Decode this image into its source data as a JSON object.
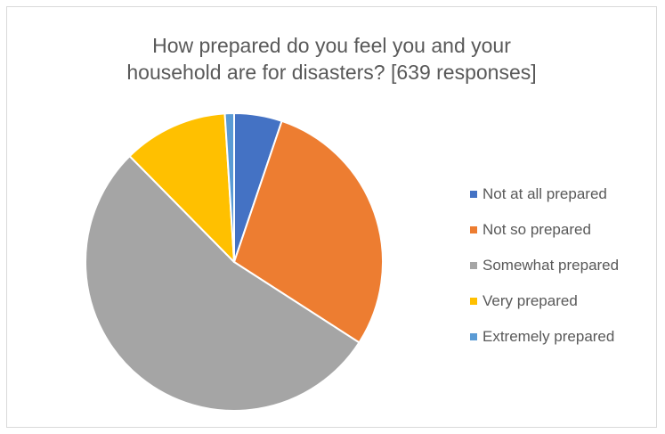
{
  "chart_data": {
    "type": "pie",
    "title": "How prepared do you feel you and your household are for disasters? [639 responses]",
    "title_lines": [
      "How prepared do you feel you and your",
      "household are for disasters? [639 responses]"
    ],
    "categories": [
      "Not at all prepared",
      "Not so prepared",
      "Somewhat prepared",
      "Very prepared",
      "Extremely prepared"
    ],
    "values": [
      5.2,
      28.9,
      53.5,
      11.4,
      1.0
    ],
    "colors": [
      "#4472c4",
      "#ed7d31",
      "#a5a5a5",
      "#ffc000",
      "#5b9bd5"
    ],
    "legend_position": "right",
    "start_angle": "top",
    "direction": "clockwise"
  }
}
